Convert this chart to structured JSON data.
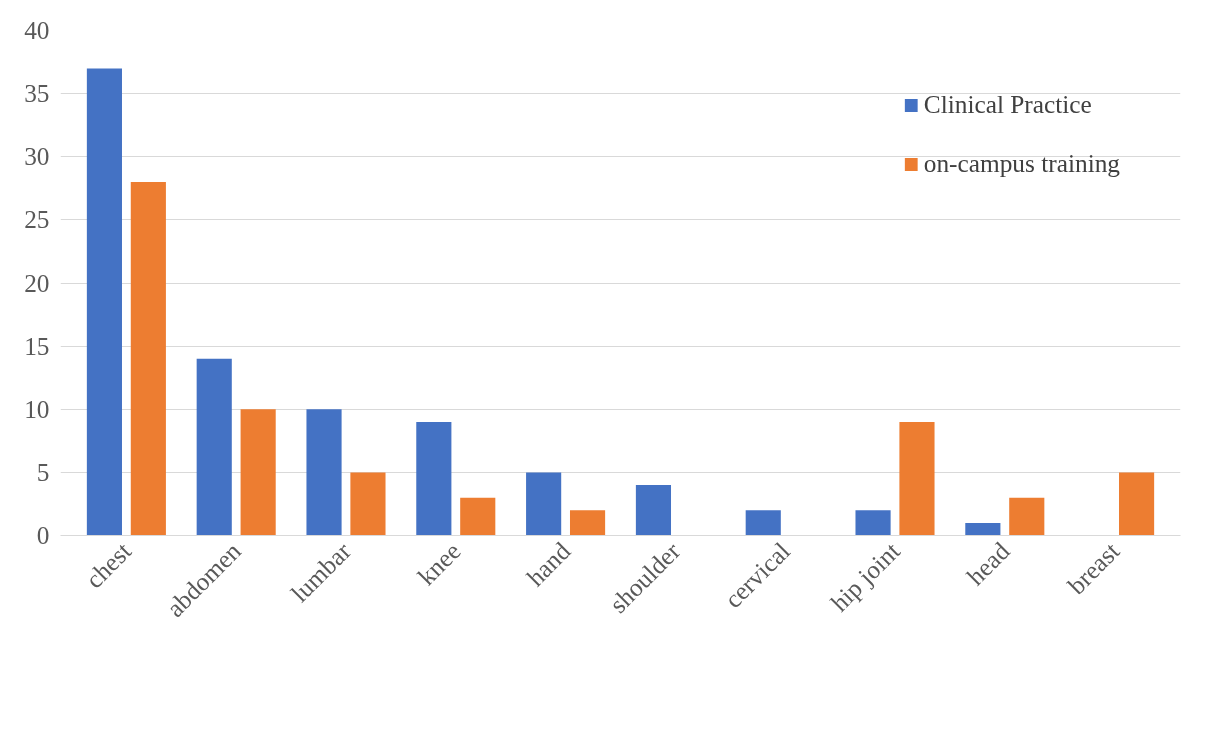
{
  "chart_data": {
    "type": "bar",
    "categories": [
      "chest",
      "abdomen",
      "lumbar",
      "knee",
      "hand",
      "shoulder",
      "cervical",
      "hip joint",
      "head",
      "breast"
    ],
    "series": [
      {
        "name": "Clinical Practice",
        "color": "#4472c4",
        "values": [
          37,
          14,
          10,
          9,
          5,
          4,
          2,
          2,
          1,
          0
        ]
      },
      {
        "name": "on-campus training",
        "color": "#ed7d31",
        "values": [
          28,
          10,
          5,
          3,
          2,
          0,
          0,
          9,
          3,
          5
        ]
      }
    ],
    "ylim": [
      0,
      40
    ],
    "yticks": [
      0,
      5,
      10,
      15,
      20,
      25,
      30,
      35,
      40
    ],
    "grid": "y",
    "legend": "top right"
  }
}
